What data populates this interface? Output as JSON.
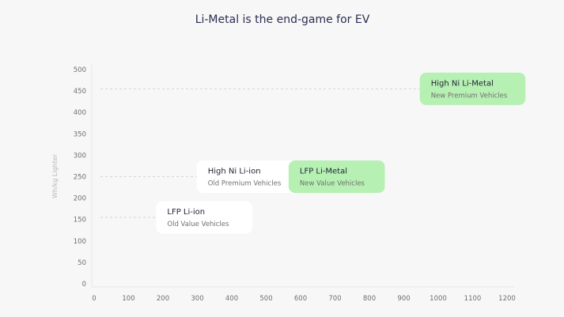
{
  "chart_data": {
    "type": "scatter",
    "title": "Li-Metal is the end-game for EV",
    "ylabel": "Wh/kg Lighter",
    "xlabel": "",
    "xlim": [
      0,
      1200
    ],
    "ylim": [
      0,
      500
    ],
    "x_ticks": [
      0,
      100,
      200,
      300,
      400,
      500,
      600,
      700,
      800,
      900,
      1000,
      1100,
      1200
    ],
    "y_ticks": [
      0,
      50,
      100,
      150,
      200,
      250,
      300,
      350,
      400,
      450,
      500
    ],
    "grid": false,
    "points": [
      {
        "label": "LFP Li-ion",
        "sublabel": "Old Value Vehicles",
        "x": 320,
        "y": 155,
        "color": "#ffffff"
      },
      {
        "label": "High Ni Li-ion",
        "sublabel": "Old Premium Vehicles",
        "x": 450,
        "y": 250,
        "color": "#ffffff"
      },
      {
        "label": "LFP Li-Metal",
        "sublabel": "New Value Vehicles",
        "x": 705,
        "y": 250,
        "color": "#b6f0b3"
      },
      {
        "label": "High Ni Li-Metal",
        "sublabel": "New Premium Vehicles",
        "x": 1100,
        "y": 455,
        "color": "#b6f0b3"
      }
    ]
  }
}
